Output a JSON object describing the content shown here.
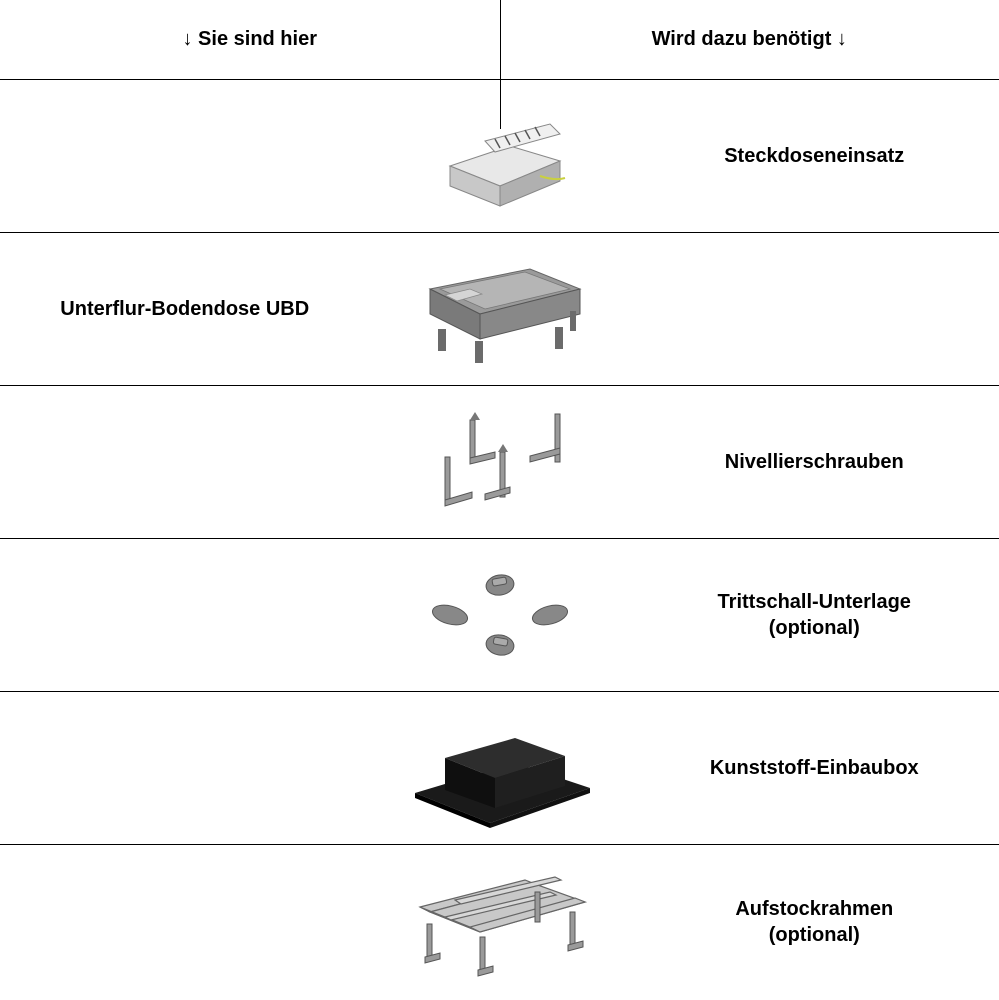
{
  "header": {
    "left": "↓ Sie sind hier",
    "right": "Wird dazu benötigt ↓"
  },
  "rows": [
    {
      "leftLabel": "",
      "rightLabel": "Steckdoseneinsatz",
      "icon": "socket-insert"
    },
    {
      "leftLabel": "Unterflur-Bodendose UBD",
      "rightLabel": "",
      "icon": "floor-box"
    },
    {
      "leftLabel": "",
      "rightLabel": "Nivellierschrauben",
      "icon": "leveling-screws"
    },
    {
      "leftLabel": "",
      "rightLabel": "Trittschall-Unterlage\n(optional)",
      "icon": "sound-pads"
    },
    {
      "leftLabel": "",
      "rightLabel": "Kunststoff-Einbaubox",
      "icon": "plastic-box"
    },
    {
      "leftLabel": "",
      "rightLabel": "Aufstockrahmen\n(optional)",
      "icon": "extension-frame"
    }
  ],
  "colors": {
    "lightGray": "#d0d0d0",
    "midGray": "#9a9a9a",
    "darkGray": "#6b6b6b",
    "black": "#1a1a1a",
    "frameGray": "#b8b8b8"
  }
}
